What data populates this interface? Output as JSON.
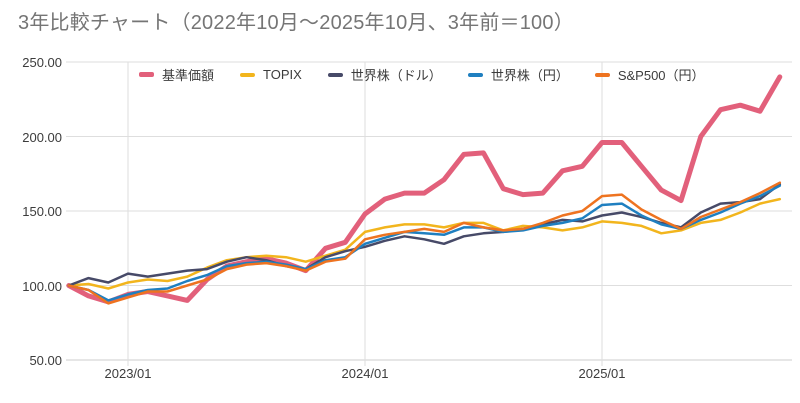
{
  "title": "3年比較チャート（2022年10月～2025年10月、3年前＝100）",
  "colors": {
    "title_text": "#757575",
    "axis_text": "#3c3c3c",
    "gridline": "#dedede",
    "baseline": "#cccccc",
    "background": "#ffffff",
    "fund_pink": "#e2607b",
    "topix_yellow": "#f2b51d",
    "world_usd_navy": "#474a68",
    "world_jpy_blue": "#1f7fc0",
    "sp500_jpy_orange": "#ee7320"
  },
  "chart_data": {
    "type": "line",
    "title": "3年比較チャート（2022年10月～2025年10月、3年前＝100）",
    "xlabel": "",
    "ylabel": "",
    "ylim": [
      50,
      250
    ],
    "yticks": [
      50,
      100,
      150,
      200,
      250
    ],
    "ytick_labels": [
      "50.00",
      "100.00",
      "150.00",
      "200.00",
      "250.00"
    ],
    "grid": true,
    "legend_position": "top",
    "x": [
      "2022/10",
      "2022/11",
      "2022/12",
      "2023/01",
      "2023/02",
      "2023/03",
      "2023/04",
      "2023/05",
      "2023/06",
      "2023/07",
      "2023/08",
      "2023/09",
      "2023/10",
      "2023/11",
      "2023/12",
      "2024/01",
      "2024/02",
      "2024/03",
      "2024/04",
      "2024/05",
      "2024/06",
      "2024/07",
      "2024/08",
      "2024/09",
      "2024/10",
      "2024/11",
      "2024/12",
      "2025/01",
      "2025/02",
      "2025/03",
      "2025/04",
      "2025/05",
      "2025/06",
      "2025/07",
      "2025/08",
      "2025/09",
      "2025/10"
    ],
    "x_tick_labels": [
      "2023/01",
      "2024/01",
      "2025/01"
    ],
    "x_tick_indices": [
      3,
      15,
      27
    ],
    "series": [
      {
        "name": "基準価額",
        "color": "#e2607b",
        "width": 5,
        "values": [
          100,
          93,
          89,
          94,
          96,
          93,
          90,
          104,
          113,
          116,
          118,
          115,
          110,
          125,
          129,
          148,
          158,
          162,
          162,
          171,
          188,
          189,
          165,
          161,
          162,
          177,
          180,
          196,
          196,
          180,
          164,
          157,
          200,
          218,
          221,
          217,
          240
        ]
      },
      {
        "name": "TOPIX",
        "color": "#f2b51d",
        "width": 2.5,
        "values": [
          100,
          101,
          98,
          102,
          104,
          103,
          106,
          112,
          117,
          119,
          120,
          119,
          116,
          120,
          124,
          136,
          139,
          141,
          141,
          139,
          142,
          142,
          137,
          140,
          139,
          137,
          139,
          143,
          142,
          140,
          135,
          137,
          142,
          144,
          149,
          155,
          158
        ]
      },
      {
        "name": "世界株（ドル）",
        "color": "#474a68",
        "width": 2.5,
        "values": [
          100,
          105,
          102,
          108,
          106,
          108,
          110,
          111,
          116,
          119,
          117,
          113,
          111,
          119,
          123,
          126,
          130,
          133,
          131,
          128,
          133,
          135,
          136,
          138,
          141,
          144,
          143,
          147,
          149,
          146,
          142,
          139,
          149,
          155,
          156,
          158,
          168
        ]
      },
      {
        "name": "世界株（円）",
        "color": "#1f7fc0",
        "width": 2.5,
        "values": [
          100,
          97,
          90,
          94,
          97,
          98,
          103,
          107,
          113,
          115,
          116,
          114,
          111,
          117,
          119,
          128,
          132,
          136,
          135,
          134,
          139,
          139,
          136,
          137,
          140,
          142,
          145,
          154,
          155,
          147,
          141,
          138,
          144,
          149,
          155,
          160,
          167
        ]
      },
      {
        "name": "S&P500（円）",
        "color": "#ee7320",
        "width": 2.5,
        "values": [
          100,
          97,
          88,
          92,
          96,
          96,
          100,
          104,
          111,
          114,
          115,
          113,
          110,
          116,
          118,
          131,
          134,
          136,
          138,
          136,
          142,
          139,
          137,
          138,
          142,
          147,
          150,
          160,
          161,
          151,
          144,
          138,
          146,
          151,
          156,
          162,
          169
        ]
      }
    ]
  }
}
